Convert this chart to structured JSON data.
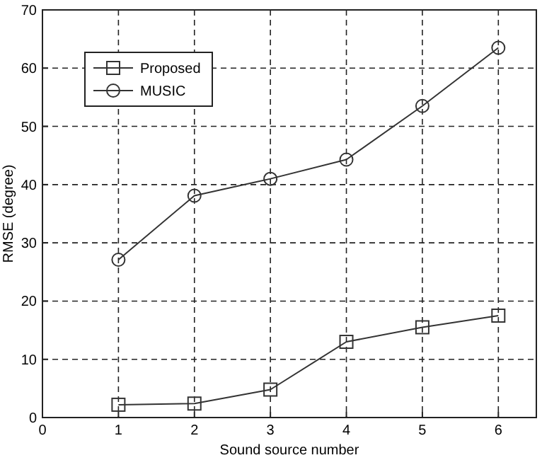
{
  "chart_data": {
    "type": "line",
    "xlabel": "Sound source number",
    "ylabel": "RMSE (degree)",
    "x": [
      1,
      2,
      3,
      4,
      5,
      6
    ],
    "xlim": [
      0,
      6.5
    ],
    "xticks": [
      0,
      1,
      2,
      3,
      4,
      5,
      6
    ],
    "ylim": [
      0,
      70
    ],
    "yticks": [
      0,
      10,
      20,
      30,
      40,
      50,
      60,
      70
    ],
    "grid": true,
    "legend": "top left",
    "line_style": "solid",
    "series": [
      {
        "name": "Proposed",
        "color": "#333333",
        "marker": "square",
        "values": [
          2.2,
          2.4,
          4.8,
          13,
          15.5,
          17.5
        ]
      },
      {
        "name": "MUSIC",
        "color": "#333333",
        "marker": "circle",
        "values": [
          27.1,
          38.1,
          41,
          44.3,
          53.5,
          63.5
        ]
      }
    ]
  }
}
